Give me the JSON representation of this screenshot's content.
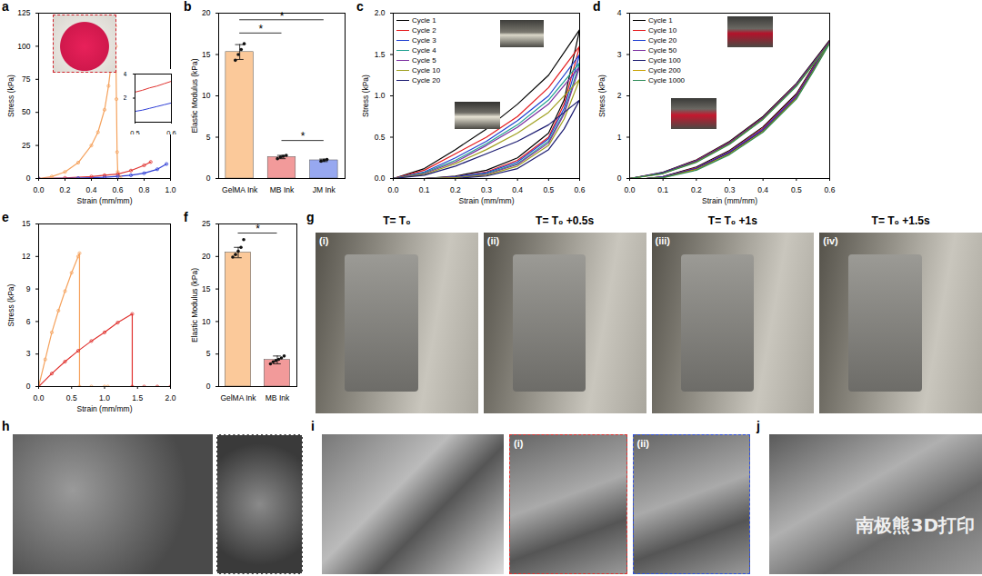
{
  "chart_data": [
    {
      "panel": "a",
      "type": "line",
      "xlabel": "Strain (mm/mm)",
      "ylabel": "Stress (kPa)",
      "xlim": [
        0,
        1
      ],
      "xticks": [
        {
          "value": 0,
          "label": "0.0"
        },
        0.2,
        0.4,
        0.6,
        0.8,
        {
          "value": 1,
          "label": "1.0"
        }
      ],
      "ylim": [
        0,
        125
      ],
      "yticks": [
        0,
        25,
        50,
        75,
        100,
        125
      ],
      "series": [
        {
          "color": "#f5a25d",
          "marker": "circle",
          "x": [
            0,
            0.1,
            0.2,
            0.3,
            0.4,
            0.45,
            0.5,
            0.53,
            0.56,
            0.58,
            0.585,
            0.59,
            0.595,
            0.6,
            0.62
          ],
          "values": [
            0,
            1.5,
            5,
            12,
            25,
            35,
            52,
            70,
            95,
            115,
            100,
            60,
            20,
            5,
            1
          ]
        },
        {
          "color": "#e0322f",
          "marker": "circle",
          "x": [
            0,
            0.2,
            0.4,
            0.5,
            0.6,
            0.7,
            0.8,
            0.85
          ],
          "values": [
            0,
            0.5,
            1.5,
            2.5,
            3.4,
            6,
            10,
            12.5
          ]
        },
        {
          "color": "#2f3fd6",
          "marker": "circle",
          "x": [
            0,
            0.3,
            0.5,
            0.6,
            0.7,
            0.8,
            0.9,
            0.97
          ],
          "values": [
            0,
            0.3,
            0.9,
            1.6,
            2.5,
            4,
            7,
            11
          ]
        }
      ],
      "inset": {
        "type": "line",
        "xlim": [
          0.5,
          0.6
        ],
        "xticks": [
          0.5,
          0.6
        ],
        "ylim": [
          0,
          4
        ],
        "yticks": [
          2,
          4
        ],
        "series": [
          {
            "color": "#e0322f",
            "x": [
              0.5,
              0.52,
              0.54,
              0.56,
              0.58,
              0.6
            ],
            "values": [
              2.5,
              2.65,
              2.85,
              3.0,
              3.2,
              3.4
            ]
          },
          {
            "color": "#2f3fd6",
            "x": [
              0.5,
              0.52,
              0.54,
              0.56,
              0.58,
              0.6
            ],
            "values": [
              0.9,
              1.0,
              1.15,
              1.3,
              1.45,
              1.6
            ]
          }
        ]
      }
    },
    {
      "panel": "b",
      "type": "bar",
      "categories": [
        "GelMA Ink",
        "MB Ink",
        "JM Ink"
      ],
      "values": [
        15.3,
        2.6,
        2.2
      ],
      "errors": [
        0.9,
        0.2,
        0.15
      ],
      "points": [
        [
          14.3,
          15.0,
          15.6,
          16.3
        ],
        [
          2.4,
          2.6,
          2.7,
          2.8
        ],
        [
          2.1,
          2.2,
          2.3
        ]
      ],
      "colors": [
        "#fbc99a",
        "#f29a9a",
        "#97a8f0"
      ],
      "ylabel": "Elastic Modulus (kPa)",
      "ylim": [
        0,
        20
      ],
      "yticks": [
        0,
        5,
        10,
        15,
        20
      ],
      "significance": [
        {
          "from": "GelMA Ink",
          "to": "JM Ink",
          "y": 19.2,
          "label": "*"
        },
        {
          "from": "GelMA Ink",
          "to": "MB Ink",
          "y": 17.6,
          "label": "*"
        },
        {
          "from": "MB Ink",
          "to": "JM Ink",
          "y": 4.6,
          "label": "*"
        }
      ]
    },
    {
      "panel": "c",
      "type": "line",
      "legend": "top-left",
      "xlabel": "Strain (mm/mm)",
      "ylabel": "Stress (kPa)",
      "xlim": [
        0,
        0.6
      ],
      "xticks": [
        {
          "value": 0,
          "label": "0.0"
        },
        0.1,
        0.2,
        0.3,
        0.4,
        0.5,
        0.6
      ],
      "ylim": [
        0,
        2
      ],
      "yticks": [
        {
          "value": 0,
          "label": "0.0"
        },
        0.5,
        {
          "value": 1,
          "label": "1.0"
        },
        1.5,
        {
          "value": 2,
          "label": "2.0"
        }
      ],
      "x": [
        0,
        0.1,
        0.2,
        0.3,
        0.4,
        0.5,
        0.6,
        0.55,
        0.5,
        0.4,
        0.3,
        0.2,
        0.1,
        0.05
      ],
      "series": [
        {
          "name": "Cycle 1",
          "color": "#000000",
          "values": [
            0,
            0.12,
            0.35,
            0.6,
            0.9,
            1.25,
            1.8,
            0.95,
            0.55,
            0.25,
            0.1,
            0.03,
            0,
            0
          ]
        },
        {
          "name": "Cycle 2",
          "color": "#e41a1c",
          "values": [
            0,
            0.1,
            0.3,
            0.5,
            0.75,
            1.1,
            1.6,
            0.9,
            0.5,
            0.22,
            0.08,
            0.02,
            0,
            0
          ]
        },
        {
          "name": "Cycle 3",
          "color": "#1f3fd0",
          "values": [
            0,
            0.08,
            0.25,
            0.45,
            0.7,
            1.0,
            1.5,
            0.85,
            0.48,
            0.2,
            0.07,
            0.02,
            0,
            0
          ]
        },
        {
          "name": "Cycle 4",
          "color": "#1fa090",
          "values": [
            0,
            0.07,
            0.22,
            0.42,
            0.65,
            0.95,
            1.4,
            0.8,
            0.45,
            0.18,
            0.06,
            0.01,
            0,
            0
          ]
        },
        {
          "name": "Cycle 5",
          "color": "#7b2fa0",
          "values": [
            0,
            0.06,
            0.2,
            0.4,
            0.62,
            0.9,
            1.35,
            0.78,
            0.43,
            0.17,
            0.05,
            0.01,
            0,
            0
          ]
        },
        {
          "name": "Cycle 10",
          "color": "#a0a020",
          "values": [
            0,
            0.05,
            0.18,
            0.35,
            0.55,
            0.8,
            1.2,
            0.72,
            0.4,
            0.15,
            0.04,
            0.01,
            0,
            0
          ]
        },
        {
          "name": "Cycle 20",
          "color": "#1a1a70",
          "values": [
            0,
            0.04,
            0.15,
            0.3,
            0.45,
            0.65,
            0.95,
            0.6,
            0.35,
            0.12,
            0.03,
            0,
            0,
            0
          ]
        }
      ]
    },
    {
      "panel": "d",
      "type": "line",
      "legend": "top-left",
      "xlabel": "Strain (mm/mm)",
      "ylabel": "Stress (kPa)",
      "xlim": [
        0,
        0.6
      ],
      "xticks": [
        {
          "value": 0,
          "label": "0.0"
        },
        0.1,
        0.2,
        0.3,
        0.4,
        0.5,
        0.6
      ],
      "ylim": [
        0,
        4
      ],
      "yticks": [
        0,
        1,
        2,
        3,
        4
      ],
      "x": [
        0,
        0.1,
        0.2,
        0.3,
        0.4,
        0.5,
        0.6,
        0.55,
        0.5,
        0.4,
        0.3,
        0.2,
        0.1,
        0.05
      ],
      "series": [
        {
          "name": "Cycle 1",
          "color": "#000000",
          "values": [
            0,
            0.15,
            0.45,
            0.9,
            1.5,
            2.3,
            3.35,
            2.7,
            2.05,
            1.25,
            0.68,
            0.28,
            0.05,
            0
          ]
        },
        {
          "name": "Cycle 10",
          "color": "#e41a1c",
          "values": [
            0,
            0.14,
            0.44,
            0.88,
            1.48,
            2.28,
            3.32,
            2.68,
            2.02,
            1.22,
            0.66,
            0.26,
            0.04,
            0
          ]
        },
        {
          "name": "Cycle 20",
          "color": "#1f3fd0",
          "values": [
            0,
            0.14,
            0.43,
            0.87,
            1.47,
            2.27,
            3.31,
            2.66,
            2.0,
            1.2,
            0.65,
            0.25,
            0.04,
            0
          ]
        },
        {
          "name": "Cycle 50",
          "color": "#7b2fa0",
          "values": [
            0,
            0.13,
            0.42,
            0.86,
            1.46,
            2.26,
            3.3,
            2.64,
            1.98,
            1.18,
            0.63,
            0.24,
            0.03,
            0
          ]
        },
        {
          "name": "Cycle 100",
          "color": "#1a1a70",
          "values": [
            0,
            0.13,
            0.41,
            0.85,
            1.45,
            2.25,
            3.29,
            2.62,
            1.96,
            1.16,
            0.62,
            0.23,
            0.03,
            0
          ]
        },
        {
          "name": "Cycle 200",
          "color": "#c8a000",
          "values": [
            0,
            0.12,
            0.4,
            0.84,
            1.44,
            2.24,
            3.28,
            2.6,
            1.94,
            1.14,
            0.6,
            0.22,
            0.02,
            0
          ]
        },
        {
          "name": "Cycle 1000",
          "color": "#2e8b57",
          "values": [
            0,
            0.12,
            0.39,
            0.83,
            1.43,
            2.23,
            3.27,
            2.58,
            1.92,
            1.12,
            0.58,
            0.2,
            0.02,
            0
          ]
        }
      ]
    },
    {
      "panel": "e",
      "type": "line",
      "xlabel": "Strain (mm/mm)",
      "ylabel": "Stress (kPa)",
      "xlim": [
        0,
        2
      ],
      "xticks": [
        {
          "value": 0,
          "label": "0.0"
        },
        0.5,
        {
          "value": 1,
          "label": "1.0"
        },
        1.5,
        {
          "value": 2,
          "label": "2.0"
        }
      ],
      "ylim": [
        0,
        15
      ],
      "yticks": [
        0,
        3,
        6,
        9,
        12,
        15
      ],
      "series": [
        {
          "color": "#f5a25d",
          "marker": "circle",
          "x": [
            0,
            0.1,
            0.2,
            0.3,
            0.4,
            0.5,
            0.6,
            0.62,
            0.62,
            0.8,
            1.0,
            1.05
          ],
          "values": [
            0,
            2.5,
            5,
            7,
            8.8,
            10.5,
            12,
            12.3,
            0,
            0,
            0,
            0
          ]
        },
        {
          "color": "#e0322f",
          "marker": "circle",
          "x": [
            0,
            0.2,
            0.4,
            0.6,
            0.8,
            1.0,
            1.2,
            1.42,
            1.42,
            1.6,
            1.8,
            2.0
          ],
          "values": [
            0,
            1.2,
            2.3,
            3.3,
            4.2,
            5.0,
            5.9,
            6.7,
            0,
            0,
            0,
            0
          ]
        }
      ]
    },
    {
      "panel": "f",
      "type": "bar",
      "categories": [
        "GelMA Ink",
        "MB Ink"
      ],
      "values": [
        20.6,
        4.1
      ],
      "errors": [
        0.8,
        0.6
      ],
      "points": [
        [
          19.9,
          20.3,
          20.8,
          21.4,
          22.6
        ],
        [
          3.5,
          3.8,
          4.0,
          4.2,
          4.4,
          4.7
        ]
      ],
      "colors": [
        "#fbc99a",
        "#f29a9a"
      ],
      "ylabel": "Elastic Modulus (kPa)",
      "ylim": [
        0,
        25
      ],
      "yticks": [
        0,
        5,
        10,
        15,
        20,
        25
      ],
      "significance": [
        {
          "from": "GelMA Ink",
          "to": "MB Ink",
          "y": 23.6,
          "label": "*"
        }
      ]
    }
  ],
  "images": [
    {
      "panel": "g",
      "frames": [
        {
          "label": "(i)",
          "title": "T= T₀"
        },
        {
          "label": "(ii)",
          "title": "T= T₀ +0.5s"
        },
        {
          "label": "(iii)",
          "title": "T= T₀ +1s"
        },
        {
          "label": "(iv)",
          "title": "T= T₀ +1.5s"
        }
      ]
    },
    {
      "panel": "h"
    },
    {
      "panel": "i",
      "insets": [
        "(i)",
        "(ii)"
      ]
    },
    {
      "panel": "j",
      "watermark": "南极熊3D打印"
    }
  ]
}
